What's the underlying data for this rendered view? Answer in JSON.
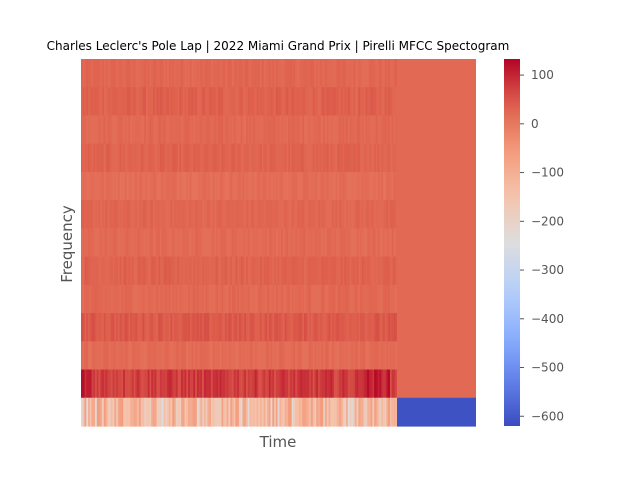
{
  "chart_data": {
    "type": "heatmap",
    "title": "Charles Leclerc's Pole Lap | 2022 Miami Grand Prix | Pirelli MFCC Spectogram",
    "xlabel": "Time",
    "ylabel": "Frequency",
    "x_ticks_shown": false,
    "y_ticks_shown": false,
    "grid": false,
    "rows": 13,
    "colorbar": {
      "colormap": "coolwarm",
      "min": -620,
      "max": 133,
      "ticks": [
        100,
        0,
        -100,
        -200,
        -300,
        -400,
        -500,
        -600
      ],
      "tick_labels": [
        "100",
        "0",
        "−100",
        "−200",
        "−300",
        "−400",
        "−500",
        "−600"
      ]
    },
    "time_extent": {
      "active_fraction": 0.8,
      "tail_fraction": 0.2
    },
    "row_levels": [
      {
        "row": 1,
        "mean": 27,
        "variation": 10,
        "tail": 22
      },
      {
        "row": 2,
        "mean": 35,
        "variation": 12,
        "tail": 22
      },
      {
        "row": 3,
        "mean": 25,
        "variation": 10,
        "tail": 22
      },
      {
        "row": 4,
        "mean": 32,
        "variation": 11,
        "tail": 22
      },
      {
        "row": 5,
        "mean": 18,
        "variation": 9,
        "tail": 22
      },
      {
        "row": 6,
        "mean": 28,
        "variation": 10,
        "tail": 22
      },
      {
        "row": 7,
        "mean": 22,
        "variation": 9,
        "tail": 22
      },
      {
        "row": 8,
        "mean": 33,
        "variation": 11,
        "tail": 22
      },
      {
        "row": 9,
        "mean": 24,
        "variation": 10,
        "tail": 22
      },
      {
        "row": 10,
        "mean": 45,
        "variation": 12,
        "tail": 22
      },
      {
        "row": 11,
        "mean": 20,
        "variation": 10,
        "tail": 22
      },
      {
        "row": 12,
        "mean": 75,
        "variation": 25,
        "tail": 22
      },
      {
        "row": 13,
        "mean": -110,
        "variation": 55,
        "tail": -610
      }
    ]
  }
}
